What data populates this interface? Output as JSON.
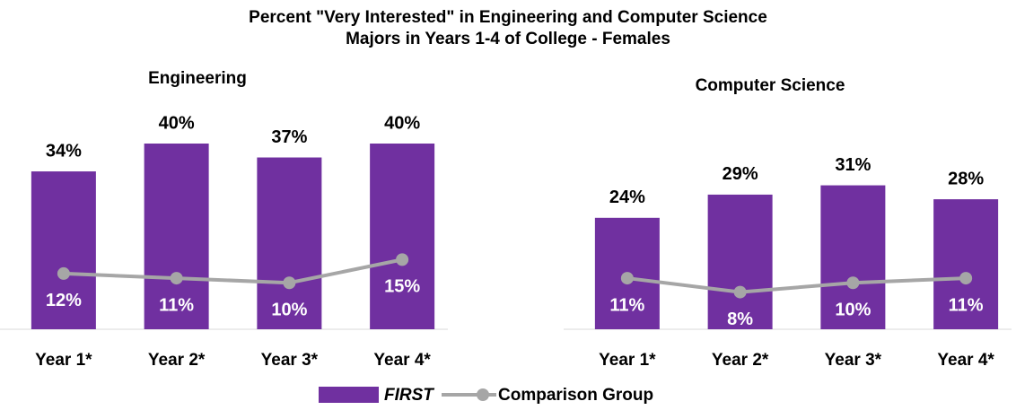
{
  "title": [
    "Percent \"Very Interested\" in Engineering and Computer Science",
    "Majors in Years 1-4 of College - Females"
  ],
  "chart_data": [
    {
      "type": "bar_line",
      "title": "Engineering",
      "categories": [
        "Year 1*",
        "Year 2*",
        "Year 3*",
        "Year 4*"
      ],
      "ylim": [
        0,
        40
      ],
      "series": [
        {
          "name": "FIRST",
          "color": "#7030a0",
          "values": [
            34,
            40,
            37,
            40
          ],
          "value_labels": [
            "34%",
            "40%",
            "37%",
            "40%"
          ]
        },
        {
          "name": "Comparison Group",
          "color": "#a6a6a6",
          "values": [
            12,
            11,
            10,
            15
          ],
          "value_labels": [
            "12%",
            "11%",
            "10%",
            "15%"
          ]
        }
      ]
    },
    {
      "type": "bar_line",
      "title": "Computer Science",
      "categories": [
        "Year 1*",
        "Year 2*",
        "Year 3*",
        "Year 4*"
      ],
      "ylim": [
        0,
        40
      ],
      "series": [
        {
          "name": "FIRST",
          "color": "#7030a0",
          "values": [
            24,
            29,
            31,
            28
          ],
          "value_labels": [
            "24%",
            "29%",
            "31%",
            "28%"
          ]
        },
        {
          "name": "Comparison Group",
          "color": "#a6a6a6",
          "values": [
            11,
            8,
            10,
            11
          ],
          "value_labels": [
            "11%",
            "8%",
            "10%",
            "11%"
          ]
        }
      ]
    }
  ]
}
